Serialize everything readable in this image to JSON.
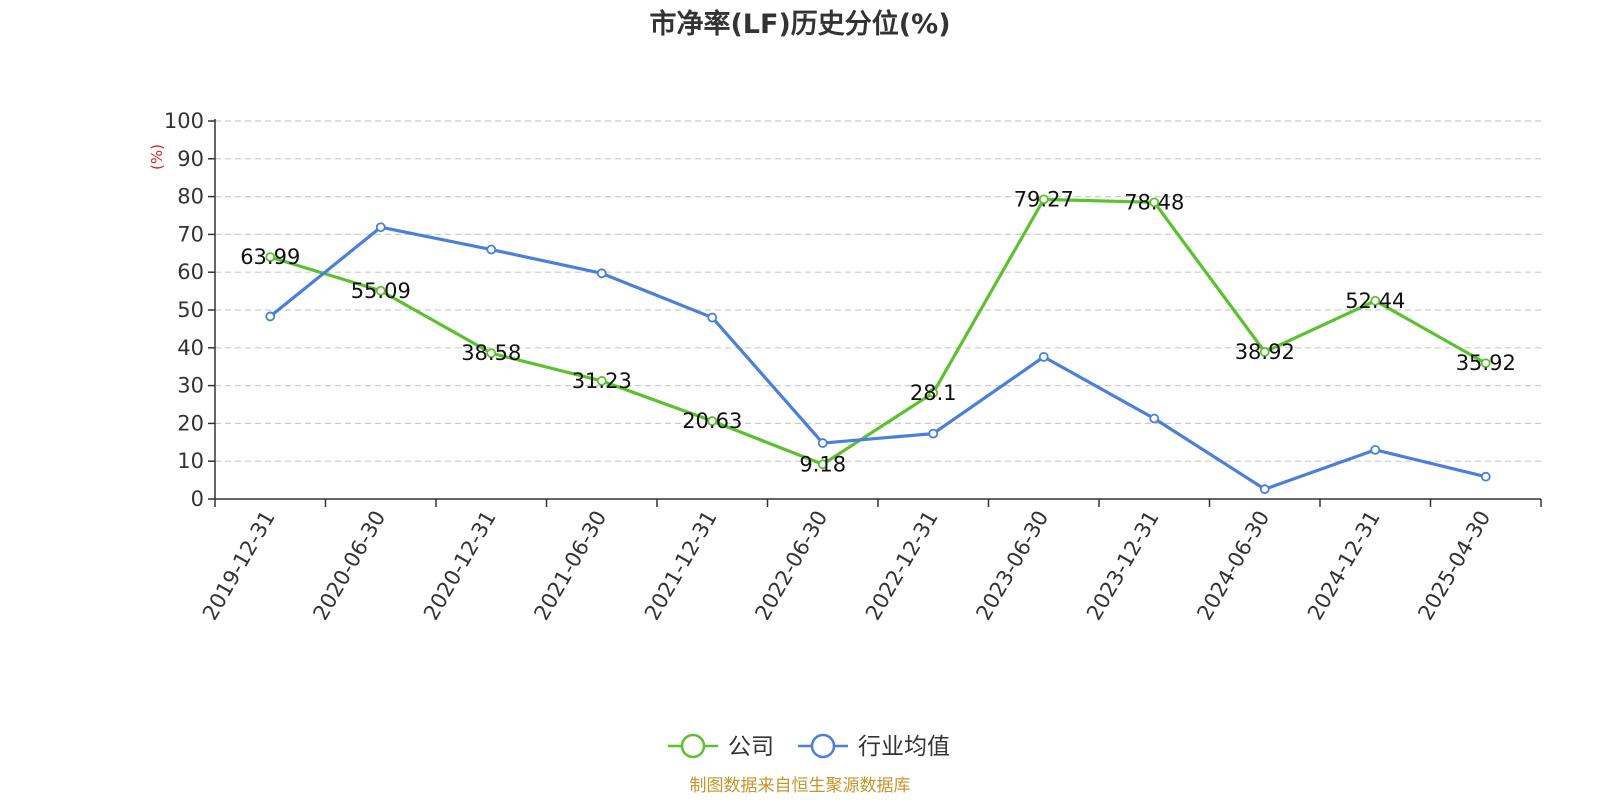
{
  "chart_data": {
    "type": "line",
    "title": "市净率(LF)历史分位(%)",
    "ylabel": "(%)",
    "xlabel": "",
    "ylim": [
      0,
      100
    ],
    "yticks": [
      0,
      10,
      20,
      30,
      40,
      50,
      60,
      70,
      80,
      90,
      100
    ],
    "grid": true,
    "legend_position": "bottom-center",
    "categories": [
      "2019-12-31",
      "2020-06-30",
      "2020-12-31",
      "2021-06-30",
      "2021-12-31",
      "2022-06-30",
      "2022-12-31",
      "2023-06-30",
      "2023-12-31",
      "2024-06-30",
      "2024-12-31",
      "2025-04-30"
    ],
    "series": [
      {
        "name": "公司",
        "color": "#5cc12e",
        "values": [
          63.99,
          55.09,
          38.58,
          31.23,
          20.63,
          9.18,
          28.1,
          79.27,
          78.48,
          38.92,
          52.44,
          35.92
        ],
        "show_labels": true,
        "labels": [
          "63.99",
          "55.09",
          "38.58",
          "31.23",
          "20.63",
          "9.18",
          "28.1",
          "79.27",
          "78.48",
          "38.92",
          "52.44",
          "35.92"
        ]
      },
      {
        "name": "行业均值",
        "color": "#4a7fdc",
        "values": [
          48.3,
          71.9,
          66,
          59.7,
          48,
          14.8,
          17.3,
          37.6,
          21.3,
          2.6,
          13,
          5.9
        ],
        "show_labels": false
      }
    ]
  },
  "footer": {
    "source": "制图数据来自恒生聚源数据库",
    "source_color": "#c9942a"
  }
}
